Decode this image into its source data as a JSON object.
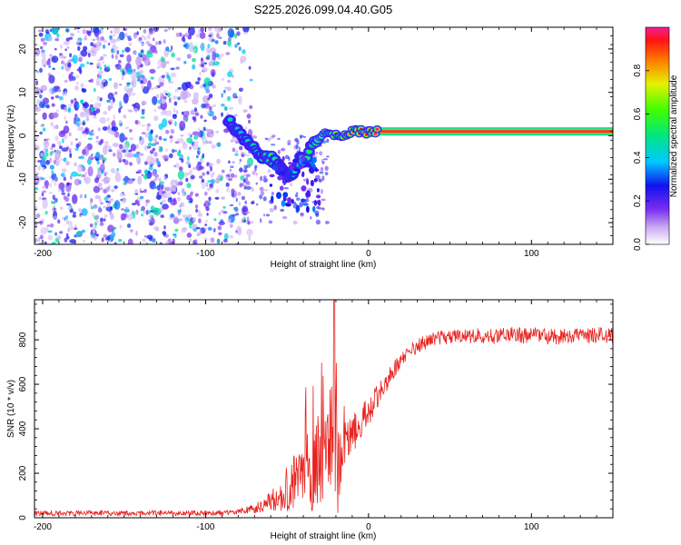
{
  "title": "S225.2026.099.04.40.G05",
  "colors": {
    "snr_line": "#e8231f",
    "tone": "#ff0f3c",
    "frame": "#000000"
  },
  "chart_data": [
    {
      "type": "heatmap",
      "name": "spectrogram",
      "title": "S225.2026.099.04.40.G05",
      "xlabel": "Height of straight line (km)",
      "ylabel": "Frequency (Hz)",
      "xlim": [
        -205,
        150
      ],
      "ylim": [
        -25,
        25
      ],
      "x_ticks": [
        -200,
        -100,
        0,
        100
      ],
      "x_tick_labels": [
        "-200",
        "-100",
        "0",
        "100"
      ],
      "y_ticks": [
        -20,
        -10,
        0,
        10,
        20
      ],
      "y_tick_labels": [
        "-20",
        "-10",
        "0",
        "10",
        "20"
      ],
      "colorbar": {
        "label": "Normalized spectral amplitude",
        "range": [
          0,
          1
        ],
        "ticks": [
          0.0,
          0.2,
          0.4,
          0.6,
          0.8
        ],
        "tick_labels": [
          "0.0",
          "0.2",
          "0.4",
          "0.6",
          "0.8"
        ]
      },
      "noise_region": {
        "x_from": -205,
        "x_to": -75,
        "typical_amplitude": 0.25
      },
      "tone_track": {
        "x": [
          -85,
          -80,
          -75,
          -70,
          -65,
          -60,
          -55,
          -50,
          -45,
          -42,
          -38,
          -35,
          -30,
          -25,
          -20,
          -15,
          -10,
          -5,
          0,
          5,
          150
        ],
        "frequency": [
          3,
          1,
          -1,
          -3,
          -5,
          -5,
          -7,
          -9,
          -8,
          -5,
          -6,
          -2,
          0,
          1,
          0,
          0,
          1,
          1,
          1,
          1,
          1
        ],
        "amplitude": [
          0.45,
          0.4,
          0.5,
          0.55,
          0.5,
          0.6,
          0.45,
          0.35,
          0.5,
          0.4,
          0.55,
          0.6,
          0.7,
          0.75,
          0.8,
          0.85,
          0.9,
          0.92,
          0.95,
          1.0,
          1.0
        ]
      }
    },
    {
      "type": "line",
      "name": "snr",
      "xlabel": "Height of straight line (km)",
      "ylabel": "SNR (10 * v/v)",
      "xlim": [
        -205,
        150
      ],
      "ylim": [
        0,
        980
      ],
      "x_ticks": [
        -200,
        -100,
        0,
        100
      ],
      "x_tick_labels": [
        "-200",
        "-100",
        "0",
        "100"
      ],
      "y_ticks": [
        0,
        200,
        400,
        600,
        800
      ],
      "y_tick_labels": [
        "0",
        "200",
        "400",
        "600",
        "800"
      ],
      "series": [
        {
          "name": "SNR",
          "x": [
            -205,
            -190,
            -170,
            -150,
            -130,
            -110,
            -90,
            -80,
            -70,
            -65,
            -60,
            -55,
            -50,
            -45,
            -40,
            -35,
            -30,
            -27,
            -25,
            -22,
            -20,
            -17,
            -15,
            -10,
            -5,
            0,
            5,
            10,
            15,
            20,
            25,
            30,
            35,
            40,
            45,
            50,
            60,
            70,
            80,
            90,
            100,
            110,
            120,
            130,
            140,
            150
          ],
          "y": [
            20,
            20,
            22,
            20,
            22,
            20,
            22,
            28,
            40,
            55,
            80,
            100,
            130,
            160,
            190,
            230,
            260,
            290,
            300,
            250,
            200,
            270,
            320,
            370,
            420,
            470,
            540,
            600,
            660,
            700,
            740,
            770,
            790,
            805,
            810,
            815,
            815,
            820,
            815,
            820,
            820,
            815,
            815,
            820,
            820,
            820
          ],
          "noise_amplitude": [
            12,
            12,
            12,
            12,
            12,
            12,
            12,
            14,
            20,
            28,
            45,
            70,
            110,
            140,
            170,
            200,
            220,
            200,
            180,
            220,
            250,
            140,
            110,
            90,
            80,
            75,
            60,
            50,
            45,
            40,
            38,
            35,
            33,
            32,
            32,
            32,
            32,
            34,
            36,
            38,
            36,
            36,
            36,
            36,
            36,
            36
          ]
        }
      ]
    }
  ]
}
